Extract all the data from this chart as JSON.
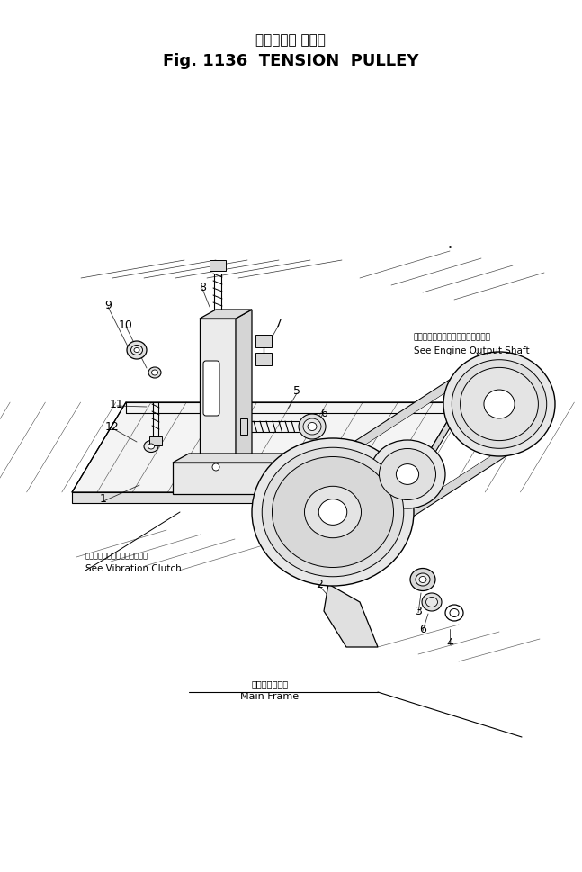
{
  "title_japanese": "テンション プーリ",
  "title_english": "Fig. 1136  TENSION  PULLEY",
  "bg_color": "#ffffff",
  "line_color": "#000000",
  "ref_engine_output_shaft_jp": "エンジンアウトプットシャフト参照",
  "ref_engine_output_shaft_en": "See Engine Output Shaft",
  "ref_vibration_clutch_jp": "バイブレーションクラッチ参照",
  "ref_vibration_clutch_en": "See Vibration Clutch",
  "ref_main_frame_jp": "メインフレーム",
  "ref_main_frame_en": "Main Frame",
  "part_numbers": [
    [
      "1",
      115,
      555
    ],
    [
      "2",
      355,
      650
    ],
    [
      "3",
      465,
      680
    ],
    [
      "4",
      500,
      715
    ],
    [
      "5",
      330,
      435
    ],
    [
      "6",
      360,
      460
    ],
    [
      "6",
      470,
      700
    ],
    [
      "7",
      310,
      360
    ],
    [
      "8",
      225,
      320
    ],
    [
      "9",
      120,
      340
    ],
    [
      "10",
      140,
      362
    ],
    [
      "11",
      130,
      450
    ],
    [
      "12",
      125,
      475
    ]
  ]
}
